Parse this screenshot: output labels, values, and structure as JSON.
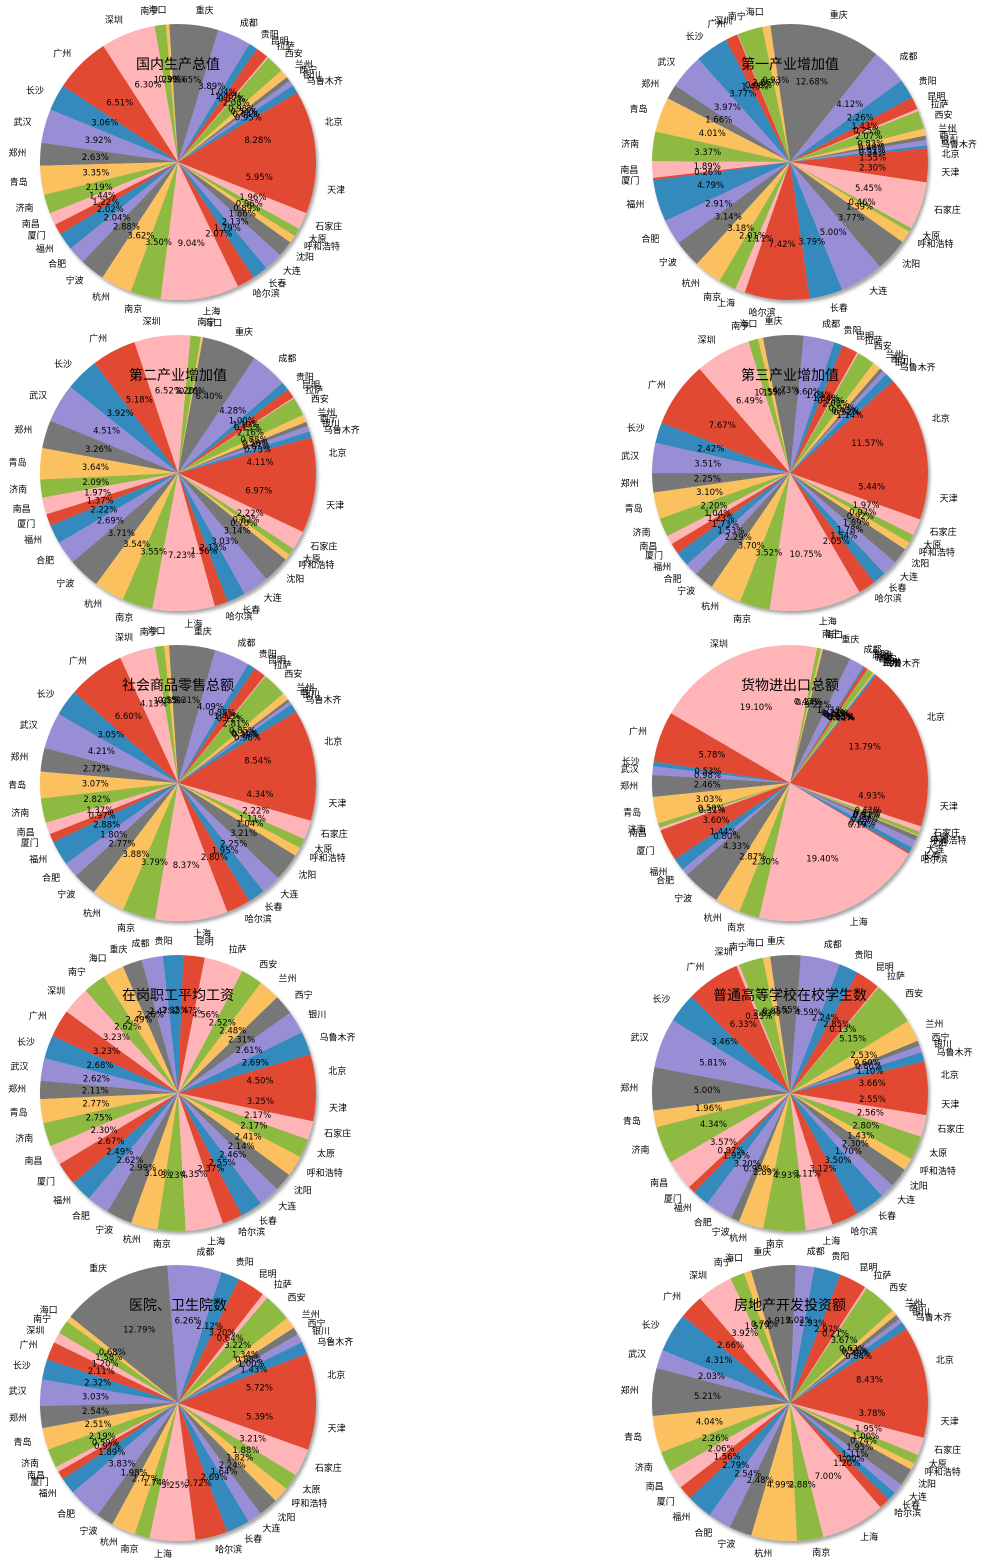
{
  "figure": {
    "layout": "5 rows x 2 columns of pie charts"
  },
  "chart_data": [
    {
      "type": "pie",
      "title": "国内生产总值",
      "labels": [
        "北京",
        "乌鲁木齐",
        "银川",
        "西宁",
        "兰州",
        "西安",
        "拉萨",
        "昆明",
        "贵阳",
        "成都",
        "重庆",
        "海口",
        "南宁",
        "深圳",
        "广州",
        "长沙",
        "武汉",
        "郑州",
        "青岛",
        "济南",
        "南昌",
        "厦门",
        "福州",
        "合肥",
        "宁波",
        "杭州",
        "南京",
        "上海",
        "哈尔滨",
        "长春",
        "大连",
        "沈阳",
        "呼和浩特",
        "太原",
        "石家庄",
        "天津"
      ],
      "values": [
        8.28,
        0.95,
        0.64,
        0.54,
        0.98,
        2.08,
        0.17,
        1.45,
        1.04,
        3.89,
        5.65,
        0.39,
        1.29,
        6.3,
        6.51,
        3.06,
        3.92,
        2.63,
        3.35,
        2.19,
        1.44,
        1.22,
        2.02,
        2.04,
        2.88,
        3.62,
        3.5,
        9.04,
        2.07,
        1.79,
        2.13,
        1.86,
        0.89,
        0.96,
        1.96,
        5.95
      ]
    },
    {
      "type": "pie",
      "title": "第一产业增加值",
      "labels": [
        "北京",
        "乌鲁木齐",
        "银川",
        "西宁",
        "兰州",
        "西安",
        "拉萨",
        "昆明",
        "贵阳",
        "成都",
        "重庆",
        "海口",
        "南宁",
        "深圳",
        "广州",
        "长沙",
        "武汉",
        "郑州",
        "青岛",
        "济南",
        "南昌",
        "厦门",
        "福州",
        "合肥",
        "宁波",
        "杭州",
        "南京",
        "上海",
        "哈尔滨",
        "长春",
        "大连",
        "沈阳",
        "呼和浩特",
        "太原",
        "石家庄",
        "天津"
      ],
      "values": [
        1.55,
        0.34,
        0.61,
        0.48,
        0.83,
        2.07,
        0.25,
        1.43,
        2.26,
        4.12,
        12.68,
        0.93,
        2.86,
        0.08,
        1.43,
        3.77,
        3.97,
        1.66,
        4.01,
        3.37,
        1.89,
        0.26,
        4.79,
        2.91,
        3.14,
        3.18,
        2.01,
        1.11,
        7.42,
        3.79,
        5.0,
        3.77,
        1.39,
        0.46,
        5.45,
        2.3
      ]
    },
    {
      "type": "pie",
      "title": "第二产业增加值",
      "labels": [
        "北京",
        "乌鲁木齐",
        "银川",
        "西宁",
        "兰州",
        "西安",
        "拉萨",
        "昆明",
        "贵阳",
        "成都",
        "重庆",
        "海口",
        "南宁",
        "深圳",
        "广州",
        "长沙",
        "武汉",
        "郑州",
        "青岛",
        "济南",
        "南昌",
        "厦门",
        "福州",
        "合肥",
        "宁波",
        "杭州",
        "南京",
        "上海",
        "哈尔滨",
        "长春",
        "大连",
        "沈阳",
        "呼和浩特",
        "太原",
        "石家庄",
        "天津"
      ],
      "values": [
        4.11,
        0.73,
        0.67,
        0.5,
        0.88,
        2.16,
        0.13,
        1.1,
        1.0,
        4.28,
        6.4,
        0.26,
        1.2,
        6.52,
        5.18,
        3.92,
        4.51,
        3.26,
        3.64,
        2.09,
        1.97,
        1.37,
        2.22,
        2.69,
        3.71,
        3.54,
        3.55,
        7.23,
        1.56,
        2.13,
        3.03,
        3.14,
        0.7,
        0.82,
        2.22,
        6.97
      ]
    },
    {
      "type": "pie",
      "title": "第三产业增加值",
      "labels": [
        "北京",
        "乌鲁木齐",
        "银川",
        "西宁",
        "兰州",
        "西安",
        "拉萨",
        "昆明",
        "贵阳",
        "成都",
        "重庆",
        "海口",
        "南宁",
        "深圳",
        "广州",
        "长沙",
        "武汉",
        "郑州",
        "青岛",
        "济南",
        "南昌",
        "厦门",
        "福州",
        "合肥",
        "宁波",
        "杭州",
        "南京",
        "上海",
        "哈尔滨",
        "长春",
        "大连",
        "沈阳",
        "呼和浩特",
        "太原",
        "石家庄",
        "天津"
      ],
      "values": [
        11.57,
        1.14,
        0.52,
        0.43,
        0.97,
        2.08,
        0.18,
        1.84,
        1.04,
        3.6,
        4.73,
        0.59,
        1.15,
        6.49,
        7.67,
        2.42,
        3.51,
        2.25,
        3.1,
        2.2,
        1.04,
        1.23,
        1.73,
        1.53,
        2.29,
        3.7,
        3.52,
        10.75,
        2.05,
        1.54,
        1.78,
        1.89,
        0.92,
        0.97,
        1.97,
        5.44
      ]
    },
    {
      "type": "pie",
      "title": "社会商品零售总额",
      "labels": [
        "北京",
        "乌鲁木齐",
        "银川",
        "西宁",
        "兰州",
        "西安",
        "拉萨",
        "昆明",
        "贵阳",
        "成都",
        "重庆",
        "海口",
        "南宁",
        "深圳",
        "广州",
        "长沙",
        "武汉",
        "郑州",
        "青岛",
        "济南",
        "南昌",
        "厦门",
        "福州",
        "合肥",
        "宁波",
        "杭州",
        "南京",
        "上海",
        "哈尔滨",
        "长春",
        "大连",
        "沈阳",
        "呼和浩特",
        "太原",
        "石家庄",
        "天津"
      ],
      "values": [
        8.54,
        0.98,
        0.39,
        0.31,
        0.85,
        2.81,
        0.12,
        1.42,
        0.88,
        4.09,
        5.31,
        0.55,
        1.08,
        4.13,
        6.6,
        3.05,
        4.21,
        2.72,
        3.07,
        2.82,
        1.37,
        0.97,
        2.88,
        1.8,
        2.77,
        3.88,
        3.79,
        8.37,
        2.8,
        1.95,
        2.25,
        3.21,
        1.04,
        1.11,
        2.22,
        4.34
      ]
    },
    {
      "type": "pie",
      "title": "货物进出口总额",
      "labels": [
        "北京",
        "乌鲁木齐",
        "银川",
        "西宁",
        "兰州",
        "西安",
        "拉萨",
        "昆明",
        "贵阳",
        "成都",
        "重庆",
        "海口",
        "南宁",
        "深圳",
        "广州",
        "长沙",
        "武汉",
        "郑州",
        "青岛",
        "济南",
        "南昌",
        "厦门",
        "福州",
        "合肥",
        "宁波",
        "杭州",
        "南京",
        "上海",
        "哈尔滨",
        "长春",
        "大连",
        "沈阳",
        "呼和浩特",
        "太原",
        "石家庄",
        "天津"
      ],
      "values": [
        13.79,
        0.21,
        0.08,
        0.03,
        0.15,
        0.72,
        0.02,
        0.41,
        0.17,
        1.71,
        3.22,
        0.24,
        0.43,
        19.1,
        5.78,
        0.53,
        0.98,
        2.46,
        3.03,
        0.5,
        0.31,
        3.6,
        1.44,
        0.8,
        4.33,
        2.87,
        2.3,
        19.4,
        0.19,
        0.62,
        0.89,
        0.53,
        0.11,
        0.43,
        0.61,
        4.93
      ]
    },
    {
      "type": "pie",
      "title": "在岗职工平均工资",
      "labels": [
        "北京",
        "乌鲁木齐",
        "银川",
        "西宁",
        "兰州",
        "西安",
        "拉萨",
        "昆明",
        "贵阳",
        "成都",
        "重庆",
        "海口",
        "南宁",
        "深圳",
        "广州",
        "长沙",
        "武汉",
        "郑州",
        "青岛",
        "济南",
        "南昌",
        "厦门",
        "福州",
        "合肥",
        "宁波",
        "杭州",
        "南京",
        "上海",
        "哈尔滨",
        "长春",
        "大连",
        "沈阳",
        "呼和浩特",
        "太原",
        "石家庄",
        "天津"
      ],
      "values": [
        4.5,
        2.69,
        2.61,
        2.31,
        2.48,
        2.52,
        4.56,
        2.47,
        2.35,
        2.47,
        2.26,
        2.49,
        2.62,
        3.23,
        3.23,
        2.68,
        2.62,
        2.11,
        2.77,
        2.75,
        2.3,
        2.67,
        2.49,
        2.62,
        2.99,
        3.1,
        3.23,
        4.35,
        2.37,
        2.55,
        2.46,
        2.14,
        2.41,
        2.17,
        2.17,
        3.25
      ]
    },
    {
      "type": "pie",
      "title": "普通高等学校在校学生数",
      "labels": [
        "北京",
        "乌鲁木齐",
        "银川",
        "西宁",
        "兰州",
        "西安",
        "拉萨",
        "昆明",
        "贵阳",
        "成都",
        "重庆",
        "海口",
        "南宁",
        "深圳",
        "广州",
        "长沙",
        "武汉",
        "郑州",
        "青岛",
        "济南",
        "南昌",
        "厦门",
        "福州",
        "合肥",
        "宁波",
        "杭州",
        "南京",
        "上海",
        "哈尔滨",
        "长春",
        "大连",
        "沈阳",
        "呼和浩特",
        "太原",
        "石家庄",
        "天津"
      ],
      "values": [
        3.66,
        1.1,
        0.8,
        0.6,
        2.53,
        5.15,
        0.13,
        2.85,
        2.24,
        4.59,
        3.55,
        0.85,
        2.83,
        0.35,
        6.33,
        3.46,
        5.81,
        5.0,
        1.96,
        4.34,
        3.57,
        0.87,
        1.95,
        3.2,
        0.99,
        2.89,
        4.93,
        3.11,
        3.12,
        3.5,
        1.7,
        2.3,
        1.43,
        2.8,
        2.56,
        2.55
      ]
    },
    {
      "type": "pie",
      "title": "医院、卫生院数",
      "labels": [
        "北京",
        "乌鲁木齐",
        "银川",
        "西宁",
        "兰州",
        "西安",
        "拉萨",
        "昆明",
        "贵阳",
        "成都",
        "重庆",
        "海口",
        "南宁",
        "深圳",
        "广州",
        "长沙",
        "武汉",
        "郑州",
        "青岛",
        "济南",
        "南昌",
        "厦门",
        "福州",
        "合肥",
        "宁波",
        "杭州",
        "南京",
        "上海",
        "哈尔滨",
        "长春",
        "大连",
        "沈阳",
        "呼和浩特",
        "太原",
        "石家庄",
        "天津"
      ],
      "values": [
        5.72,
        1.43,
        1.0,
        0.88,
        1.34,
        3.22,
        0.64,
        3.2,
        2.12,
        6.26,
        12.79,
        0.68,
        1.58,
        1.2,
        2.11,
        2.32,
        3.03,
        2.54,
        2.51,
        2.19,
        0.59,
        0.97,
        1.89,
        3.83,
        1.98,
        2.77,
        1.74,
        5.25,
        3.72,
        2.69,
        1.64,
        2.24,
        1.82,
        1.88,
        3.21,
        5.39
      ]
    },
    {
      "type": "pie",
      "title": "房地产开发投资额",
      "labels": [
        "北京",
        "乌鲁木齐",
        "银川",
        "西宁",
        "兰州",
        "西安",
        "拉萨",
        "昆明",
        "贵阳",
        "成都",
        "重庆",
        "海口",
        "南宁",
        "深圳",
        "广州",
        "长沙",
        "武汉",
        "郑州",
        "青岛",
        "济南",
        "南昌",
        "厦门",
        "福州",
        "合肥",
        "宁波",
        "杭州",
        "南京",
        "上海",
        "哈尔滨",
        "长春",
        "大连",
        "沈阳",
        "呼和浩特",
        "太原",
        "石家庄",
        "天津"
      ],
      "values": [
        8.43,
        0.84,
        0.49,
        0.55,
        0.63,
        3.67,
        0.21,
        2.97,
        2.93,
        2.02,
        4.91,
        0.79,
        1.57,
        3.92,
        2.66,
        4.31,
        2.03,
        5.21,
        4.04,
        2.26,
        2.06,
        1.56,
        2.79,
        2.54,
        2.48,
        4.99,
        2.88,
        7.0,
        1.2,
        1.0,
        1.11,
        1.95,
        0.74,
        1.0,
        1.95,
        3.78
      ]
    }
  ],
  "colors": [
    "#e24a33",
    "#348abd",
    "#988ed5",
    "#777777",
    "#fbc15e",
    "#8eba42",
    "#ffb5b8"
  ]
}
